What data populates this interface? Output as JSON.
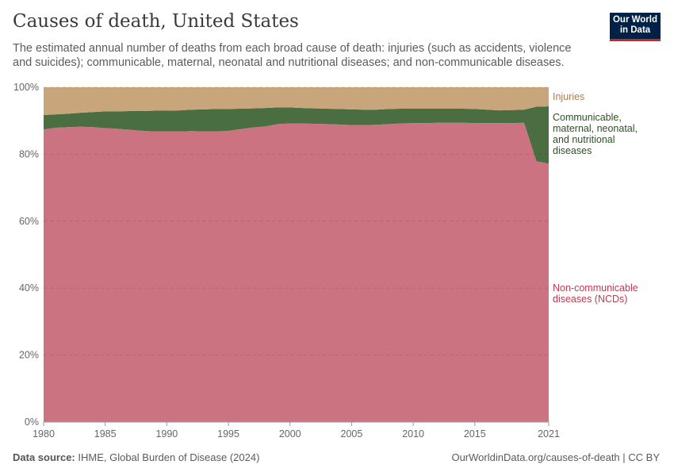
{
  "header": {
    "title": "Causes of death, United States",
    "subtitle": "The estimated annual number of deaths from each broad cause of death: injuries (such as accidents, violence and suicides); communicable, maternal, neonatal and nutritional diseases; and non-communicable diseases.",
    "logo": "Our World in Data"
  },
  "footer": {
    "source_label": "Data source:",
    "source": "IHME, Global Burden of Disease (2024)",
    "link": "OurWorldinData.org/causes-of-death | CC BY"
  },
  "chart_data": {
    "type": "area",
    "stacked": "percent",
    "x": [
      1980,
      1981,
      1982,
      1983,
      1984,
      1985,
      1986,
      1987,
      1988,
      1989,
      1990,
      1991,
      1992,
      1993,
      1994,
      1995,
      1996,
      1997,
      1998,
      1999,
      2000,
      2001,
      2002,
      2003,
      2004,
      2005,
      2006,
      2007,
      2008,
      2009,
      2010,
      2011,
      2012,
      2013,
      2014,
      2015,
      2016,
      2017,
      2018,
      2019,
      2020,
      2021
    ],
    "xticks": [
      "1980",
      "1985",
      "1990",
      "1995",
      "2000",
      "2005",
      "2010",
      "2015",
      "2021"
    ],
    "yticks": [
      "0%",
      "20%",
      "40%",
      "60%",
      "80%",
      "100%"
    ],
    "ylim": [
      0,
      100
    ],
    "grid": "horizontal dashed",
    "series": [
      {
        "name": "Non-communicable diseases (NCDs)",
        "color": "#cc7382",
        "label_color": "#c0394f",
        "values": [
          87.4,
          87.9,
          88.1,
          88.2,
          88.1,
          87.8,
          87.6,
          87.3,
          87.0,
          86.8,
          86.8,
          86.8,
          86.9,
          86.8,
          86.8,
          87.0,
          87.5,
          88.0,
          88.3,
          89.0,
          89.2,
          89.2,
          89.1,
          89.0,
          88.9,
          88.7,
          88.7,
          88.8,
          89.0,
          89.2,
          89.3,
          89.3,
          89.4,
          89.4,
          89.4,
          89.3,
          89.3,
          89.3,
          89.3,
          89.4,
          77.9,
          77.2
        ]
      },
      {
        "name": "Communicable, maternal, neonatal, and nutritional diseases",
        "color": "#4a6e41",
        "label_color": "#2e5226",
        "values": [
          4.3,
          4.0,
          4.0,
          4.2,
          4.5,
          5.0,
          5.2,
          5.6,
          5.9,
          6.2,
          6.2,
          6.3,
          6.4,
          6.6,
          6.7,
          6.5,
          6.1,
          5.7,
          5.5,
          5.0,
          4.8,
          4.6,
          4.6,
          4.6,
          4.6,
          4.7,
          4.6,
          4.5,
          4.5,
          4.4,
          4.3,
          4.3,
          4.2,
          4.2,
          4.2,
          4.2,
          4.0,
          3.8,
          3.9,
          3.9,
          16.3,
          17.1
        ]
      },
      {
        "name": "Injuries",
        "color": "#c8a57b",
        "label_color": "#b07d47",
        "values": [
          8.3,
          8.1,
          7.9,
          7.6,
          7.4,
          7.2,
          7.2,
          7.1,
          7.1,
          7.0,
          7.0,
          6.9,
          6.7,
          6.6,
          6.5,
          6.5,
          6.4,
          6.3,
          6.2,
          6.0,
          6.0,
          6.2,
          6.3,
          6.4,
          6.5,
          6.6,
          6.7,
          6.7,
          6.5,
          6.4,
          6.4,
          6.4,
          6.4,
          6.4,
          6.4,
          6.5,
          6.7,
          6.9,
          6.8,
          6.7,
          5.8,
          5.7
        ]
      }
    ]
  }
}
